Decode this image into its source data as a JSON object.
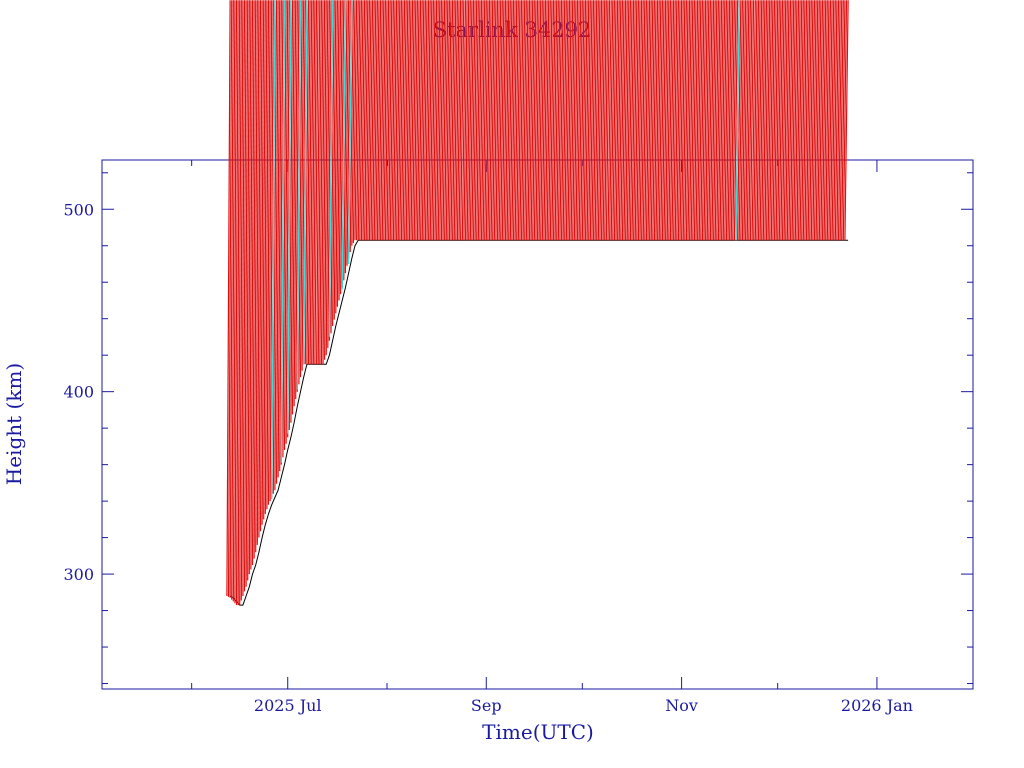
{
  "chart_data": {
    "type": "scatter",
    "title": "Starlink 34292",
    "xlabel": "Time(UTC)",
    "ylabel": "Height (km)",
    "xlim": [
      "2025-05-04",
      "2026-01-31"
    ],
    "ylim": [
      237,
      527
    ],
    "x_ticks": [
      {
        "date": "2025-07-01",
        "label": "2025 Jul"
      },
      {
        "date": "2025-09-01",
        "label": "Sep"
      },
      {
        "date": "2025-11-01",
        "label": "Nov"
      },
      {
        "date": "2026-01-01",
        "label": "2026 Jan"
      }
    ],
    "x_minor_ticks": [
      "2025-06-01",
      "2025-08-01",
      "2025-10-01",
      "2025-12-01"
    ],
    "y_ticks": [
      300,
      400,
      500
    ],
    "y_minor_step": 20,
    "grid": false,
    "colors": {
      "axis": "#1a1aa0",
      "point": "#e01010",
      "highlight": "#30e0e0",
      "line": "#000000"
    },
    "series": [
      {
        "values": [
          [
            "2025-06-13",
            288
          ],
          [
            "2025-06-14",
            287
          ],
          [
            "2025-06-15",
            285
          ],
          [
            "2025-06-16",
            283
          ],
          [
            "2025-06-17",
            283
          ],
          [
            "2025-06-18",
            288
          ],
          [
            "2025-06-19",
            293
          ],
          [
            "2025-06-20",
            300
          ],
          [
            "2025-06-21",
            305
          ],
          [
            "2025-06-22",
            312
          ],
          [
            "2025-06-23",
            320
          ],
          [
            "2025-06-24",
            327
          ],
          [
            "2025-06-25",
            333
          ],
          [
            "2025-06-26",
            338
          ],
          [
            "2025-06-27",
            342
          ],
          [
            "2025-06-28",
            346
          ],
          [
            "2025-06-29",
            353
          ],
          [
            "2025-06-30",
            360
          ],
          [
            "2025-07-01",
            368
          ],
          [
            "2025-07-02",
            375
          ],
          [
            "2025-07-03",
            383
          ],
          [
            "2025-07-04",
            392
          ],
          [
            "2025-07-05",
            400
          ],
          [
            "2025-07-06",
            408
          ],
          [
            "2025-07-07",
            415
          ],
          [
            "2025-07-08",
            415
          ],
          [
            "2025-07-09",
            415
          ],
          [
            "2025-07-10",
            415
          ],
          [
            "2025-07-11",
            415
          ],
          [
            "2025-07-12",
            415
          ],
          [
            "2025-07-13",
            415
          ],
          [
            "2025-07-14",
            420
          ],
          [
            "2025-07-15",
            428
          ],
          [
            "2025-07-16",
            436
          ],
          [
            "2025-07-17",
            443
          ],
          [
            "2025-07-18",
            450
          ],
          [
            "2025-07-19",
            457
          ],
          [
            "2025-07-20",
            465
          ],
          [
            "2025-07-21",
            473
          ],
          [
            "2025-07-22",
            480
          ],
          [
            "2025-07-23",
            483
          ],
          [
            "2025-07-25",
            483
          ],
          [
            "2025-07-28",
            483
          ],
          [
            "2025-08-01",
            483
          ],
          [
            "2025-08-05",
            483
          ],
          [
            "2025-08-10",
            483
          ],
          [
            "2025-08-15",
            483
          ],
          [
            "2025-08-20",
            483
          ],
          [
            "2025-08-25",
            483
          ],
          [
            "2025-09-01",
            483
          ],
          [
            "2025-09-05",
            483
          ],
          [
            "2025-09-10",
            483
          ],
          [
            "2025-09-15",
            483
          ],
          [
            "2025-09-20",
            483
          ],
          [
            "2025-09-25",
            483
          ],
          [
            "2025-10-01",
            483
          ],
          [
            "2025-10-05",
            483
          ],
          [
            "2025-10-10",
            483
          ],
          [
            "2025-10-15",
            483
          ],
          [
            "2025-10-20",
            483
          ],
          [
            "2025-10-25",
            483
          ],
          [
            "2025-11-01",
            483
          ],
          [
            "2025-11-05",
            483
          ],
          [
            "2025-11-10",
            483
          ],
          [
            "2025-11-15",
            483
          ],
          [
            "2025-11-20",
            483
          ],
          [
            "2025-11-25",
            483
          ],
          [
            "2025-12-01",
            483
          ],
          [
            "2025-12-05",
            483
          ],
          [
            "2025-12-10",
            483
          ],
          [
            "2025-12-15",
            483
          ],
          [
            "2025-12-20",
            483
          ],
          [
            "2025-12-23",
            483
          ]
        ],
        "highlight": [
          [
            "2025-06-27",
            341
          ],
          [
            "2025-06-30",
            361
          ],
          [
            "2025-07-02",
            377
          ],
          [
            "2025-07-05",
            401
          ],
          [
            "2025-07-07",
            415
          ],
          [
            "2025-07-15",
            430
          ],
          [
            "2025-07-19",
            456
          ],
          [
            "2025-07-21",
            470
          ],
          [
            "2025-11-19",
            483
          ]
        ]
      }
    ]
  }
}
